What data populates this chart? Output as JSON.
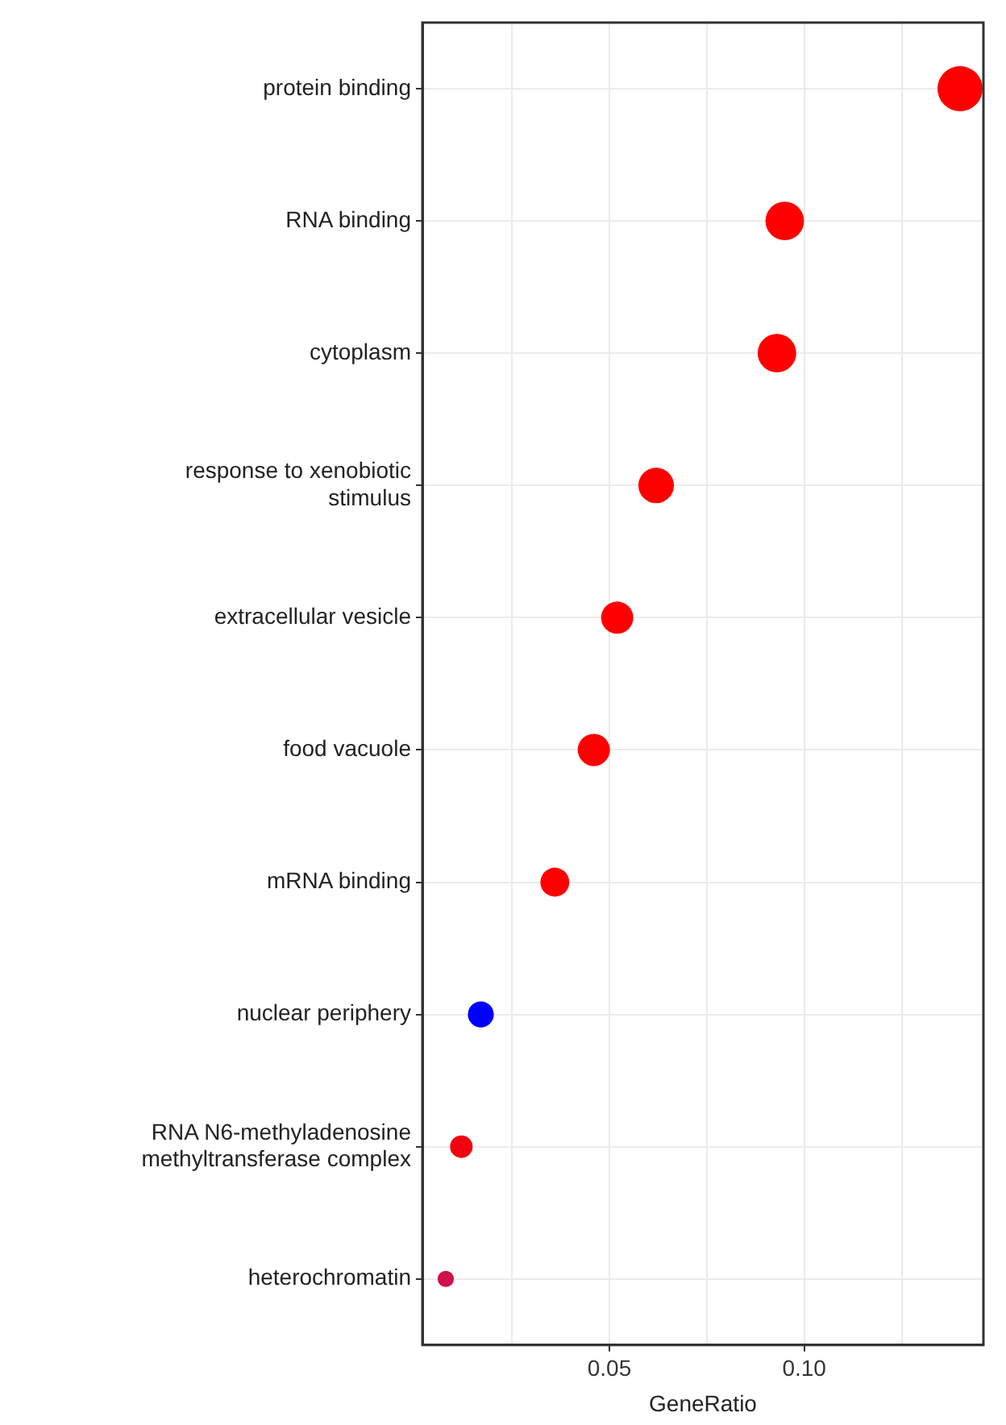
{
  "chart_data": {
    "type": "bubble",
    "orientation": "horizontal",
    "xlabel": "GeneRatio",
    "categories": [
      "protein binding",
      "RNA binding",
      "cytoplasm",
      "response to xenobiotic stimulus",
      "extracellular vesicle",
      "food vacuole",
      "mRNA binding",
      "nuclear periphery",
      "RNA N6-methyladenosine methyltransferase complex",
      "heterochromatin"
    ],
    "values": [
      0.14,
      0.095,
      0.093,
      0.062,
      0.052,
      0.046,
      0.036,
      0.017,
      0.012,
      0.008
    ],
    "sizes": [
      1,
      0.73,
      0.73,
      0.62,
      0.51,
      0.51,
      0.41,
      0.33,
      0.25,
      0.13
    ],
    "colors": [
      "#ff0000",
      "#ff0000",
      "#ff0000",
      "#ff0000",
      "#ff0000",
      "#ff0000",
      "#ff0000",
      "#0000ff",
      "#f20010",
      "#d0104c"
    ],
    "xlim": [
      0.002,
      0.146
    ],
    "xticks": [
      {
        "value": 0.025,
        "label": null
      },
      {
        "value": 0.05,
        "label": "0.05"
      },
      {
        "value": 0.075,
        "label": null
      },
      {
        "value": 0.1,
        "label": "0.10"
      },
      {
        "value": 0.125,
        "label": null
      }
    ],
    "grid": true,
    "legend": false
  }
}
